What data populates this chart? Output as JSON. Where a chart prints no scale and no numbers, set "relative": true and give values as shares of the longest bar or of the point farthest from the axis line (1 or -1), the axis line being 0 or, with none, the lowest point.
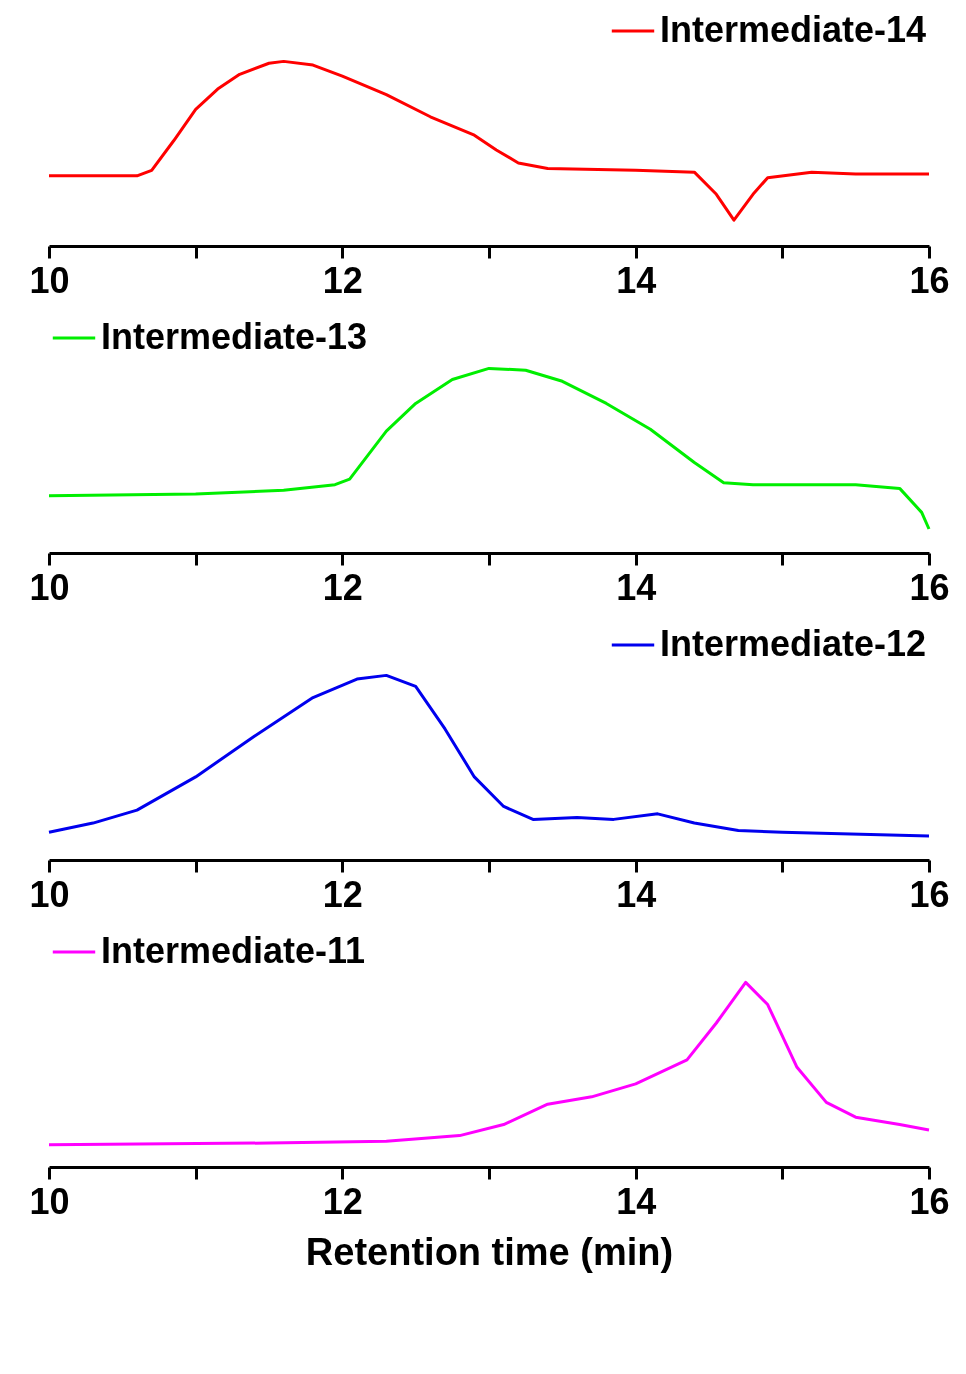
{
  "chart_data": [
    {
      "type": "line",
      "relative": true,
      "legend": "top right",
      "xlim": [
        10,
        16
      ],
      "xticks": [
        10,
        {
          "value": 11,
          "label": null
        },
        12,
        {
          "value": 13,
          "label": null
        },
        14,
        {
          "value": 15,
          "label": null
        },
        16
      ],
      "x": [
        10.0,
        10.6,
        10.7,
        10.85,
        11.0,
        11.15,
        11.3,
        11.5,
        11.6,
        11.8,
        12.0,
        12.3,
        12.6,
        12.9,
        13.05,
        13.2,
        13.4,
        14.0,
        14.4,
        14.55,
        14.67,
        14.8,
        14.9,
        15.2,
        15.5,
        16.0
      ],
      "series": [
        {
          "name": "Intermediate-14",
          "color": "#ff0000",
          "values": [
            0.38,
            0.38,
            0.41,
            0.57,
            0.74,
            0.85,
            0.93,
            0.99,
            1.0,
            0.98,
            0.92,
            0.82,
            0.7,
            0.6,
            0.52,
            0.45,
            0.42,
            0.41,
            0.4,
            0.28,
            0.14,
            0.28,
            0.37,
            0.4,
            0.39,
            0.39
          ]
        }
      ]
    },
    {
      "type": "line",
      "relative": true,
      "legend": "top left",
      "xlim": [
        10,
        16
      ],
      "xticks": [
        10,
        {
          "value": 11,
          "label": null
        },
        12,
        {
          "value": 13,
          "label": null
        },
        14,
        {
          "value": 15,
          "label": null
        },
        16
      ],
      "x": [
        10.0,
        11.0,
        11.6,
        11.95,
        12.05,
        12.3,
        12.5,
        12.75,
        13.0,
        13.25,
        13.5,
        13.8,
        14.1,
        14.4,
        14.6,
        14.8,
        15.5,
        15.8,
        15.95,
        16.0
      ],
      "series": [
        {
          "name": "Intermediate-13",
          "color": "#00ee00",
          "values": [
            0.31,
            0.32,
            0.34,
            0.37,
            0.4,
            0.66,
            0.81,
            0.94,
            1.0,
            0.99,
            0.93,
            0.81,
            0.67,
            0.49,
            0.38,
            0.37,
            0.37,
            0.35,
            0.22,
            0.13
          ]
        }
      ]
    },
    {
      "type": "line",
      "relative": true,
      "legend": "top right",
      "xlim": [
        10,
        16
      ],
      "xticks": [
        10,
        {
          "value": 11,
          "label": null
        },
        12,
        {
          "value": 13,
          "label": null
        },
        14,
        {
          "value": 15,
          "label": null
        },
        16
      ],
      "x": [
        10.0,
        10.3,
        10.6,
        11.0,
        11.4,
        11.8,
        12.1,
        12.3,
        12.5,
        12.7,
        12.9,
        13.1,
        13.3,
        13.6,
        13.85,
        14.15,
        14.4,
        14.7,
        15.0,
        16.0
      ],
      "series": [
        {
          "name": "Intermediate-12",
          "color": "#0000ee",
          "values": [
            0.15,
            0.2,
            0.27,
            0.45,
            0.67,
            0.88,
            0.98,
            1.0,
            0.94,
            0.71,
            0.45,
            0.29,
            0.22,
            0.23,
            0.22,
            0.25,
            0.2,
            0.16,
            0.15,
            0.13
          ]
        }
      ]
    },
    {
      "type": "line",
      "relative": true,
      "legend": "top left",
      "xlabel": "Retention time (min)",
      "xlim": [
        10,
        16
      ],
      "xticks": [
        10,
        {
          "value": 11,
          "label": null
        },
        12,
        {
          "value": 13,
          "label": null
        },
        14,
        {
          "value": 15,
          "label": null
        },
        16
      ],
      "x": [
        10.0,
        11.5,
        12.3,
        12.8,
        13.1,
        13.4,
        13.7,
        14.0,
        14.35,
        14.55,
        14.75,
        14.9,
        15.1,
        15.3,
        15.5,
        15.8,
        16.0
      ],
      "series": [
        {
          "name": "Intermediate-11",
          "color": "#ff00ff",
          "values": [
            0.12,
            0.13,
            0.14,
            0.17,
            0.23,
            0.34,
            0.38,
            0.45,
            0.58,
            0.78,
            1.0,
            0.88,
            0.54,
            0.35,
            0.27,
            0.23,
            0.2
          ]
        }
      ]
    }
  ]
}
